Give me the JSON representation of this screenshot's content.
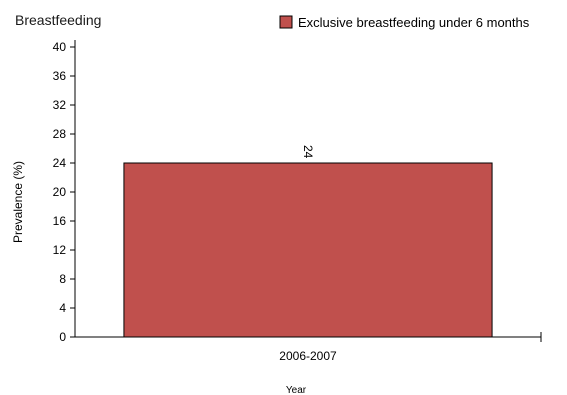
{
  "chart_data": {
    "type": "bar",
    "title": "Breastfeeding",
    "xlabel": "Year",
    "ylabel": "Prevalence (%)",
    "categories": [
      "2006-2007"
    ],
    "series": [
      {
        "name": "Exclusive breastfeeding under 6 months",
        "values": [
          24
        ],
        "color": "#c0504d"
      }
    ],
    "ylim": [
      0,
      40
    ],
    "yticks": [
      0,
      4,
      8,
      12,
      16,
      20,
      24,
      28,
      32,
      36,
      40
    ],
    "data_labels": [
      "24"
    ],
    "grid": false,
    "legend_position": "top-right"
  }
}
